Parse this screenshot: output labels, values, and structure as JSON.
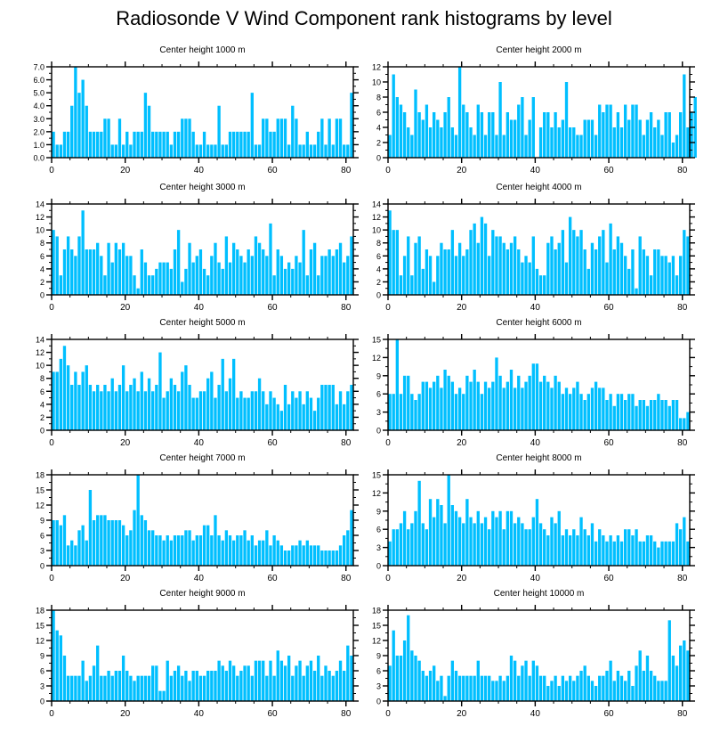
{
  "title": "Radiosonde V Wind Component rank histograms by level",
  "bar_color": "#00bfff",
  "chart_data": [
    {
      "type": "bar",
      "title": "Center height 1000 m",
      "xlabel": "",
      "ylabel": "",
      "xlim": [
        0,
        82
      ],
      "ylim": [
        0,
        7
      ],
      "xticks": [
        0,
        20,
        40,
        60,
        80
      ],
      "xtick_labels": [
        "0",
        "20",
        "40",
        "60",
        "80"
      ],
      "yticks": [
        0,
        1,
        2,
        3,
        4,
        5,
        6,
        7
      ],
      "ytick_labels": [
        "0.0",
        "1.0",
        "2.0",
        "3.0",
        "4.0",
        "5.0",
        "6.0",
        "7.0"
      ],
      "values": [
        2,
        1,
        1,
        2,
        2,
        4,
        7,
        5,
        6,
        4,
        2,
        2,
        2,
        2,
        3,
        3,
        1,
        1,
        3,
        1,
        2,
        1,
        2,
        2,
        2,
        5,
        4,
        2,
        2,
        2,
        2,
        2,
        1,
        2,
        2,
        3,
        3,
        3,
        2,
        1,
        1,
        2,
        1,
        1,
        1,
        4,
        1,
        1,
        2,
        2,
        2,
        2,
        2,
        2,
        5,
        1,
        1,
        3,
        3,
        2,
        2,
        3,
        3,
        3,
        1,
        4,
        3,
        1,
        1,
        2,
        1,
        1,
        2,
        3,
        1,
        3,
        1,
        3,
        3,
        1,
        1,
        5
      ]
    },
    {
      "type": "bar",
      "title": "Center height 2000 m",
      "xlabel": "",
      "ylabel": "",
      "xlim": [
        0,
        82
      ],
      "ylim": [
        0,
        12
      ],
      "xticks": [
        0,
        20,
        40,
        60,
        80
      ],
      "xtick_labels": [
        "0",
        "20",
        "40",
        "60",
        "80"
      ],
      "yticks": [
        0,
        2,
        4,
        6,
        8,
        10,
        12
      ],
      "ytick_labels": [
        "0",
        "2",
        "4",
        "6",
        "8",
        "10",
        "12"
      ],
      "values": [
        3,
        11,
        8,
        7,
        6,
        4,
        3,
        9,
        6,
        5,
        7,
        4,
        6,
        5,
        4,
        6,
        8,
        4,
        3,
        12,
        7,
        6,
        4,
        3,
        7,
        6,
        3,
        6,
        6,
        3,
        10,
        3,
        6,
        5,
        5,
        7,
        8,
        3,
        5,
        8,
        0,
        4,
        6,
        6,
        4,
        6,
        4,
        5,
        10,
        4,
        4,
        3,
        3,
        5,
        5,
        5,
        3,
        7,
        6,
        7,
        7,
        4,
        6,
        4,
        7,
        5,
        7,
        7,
        5,
        3,
        5,
        6,
        4,
        5,
        3,
        6,
        6,
        2,
        3,
        6,
        11,
        4,
        6,
        8
      ]
    },
    {
      "type": "bar",
      "title": "Center height 3000 m",
      "xlabel": "",
      "ylabel": "",
      "xlim": [
        0,
        82
      ],
      "ylim": [
        0,
        14
      ],
      "xticks": [
        0,
        20,
        40,
        60,
        80
      ],
      "xtick_labels": [
        "0",
        "20",
        "40",
        "60",
        "80"
      ],
      "yticks": [
        0,
        2,
        4,
        6,
        8,
        10,
        12,
        14
      ],
      "ytick_labels": [
        "0",
        "2",
        "4",
        "6",
        "8",
        "10",
        "12",
        "14"
      ],
      "values": [
        10,
        9,
        3,
        7,
        9,
        7,
        6,
        9,
        13,
        7,
        7,
        7,
        8,
        6,
        3,
        8,
        5,
        8,
        7,
        8,
        6,
        6,
        3,
        1,
        7,
        5,
        3,
        3,
        4,
        5,
        5,
        5,
        4,
        7,
        10,
        2,
        4,
        8,
        5,
        6,
        7,
        4,
        3,
        6,
        8,
        5,
        4,
        9,
        5,
        8,
        7,
        6,
        5,
        7,
        6,
        9,
        8,
        7,
        6,
        11,
        3,
        7,
        6,
        4,
        5,
        4,
        6,
        5,
        10,
        3,
        7,
        8,
        3,
        6,
        6,
        7,
        6,
        7,
        8,
        5,
        6,
        9
      ]
    },
    {
      "type": "bar",
      "title": "Center height 4000 m",
      "xlabel": "",
      "ylabel": "",
      "xlim": [
        0,
        82
      ],
      "ylim": [
        0,
        14
      ],
      "xticks": [
        0,
        20,
        40,
        60,
        80
      ],
      "xtick_labels": [
        "0",
        "20",
        "40",
        "60",
        "80"
      ],
      "yticks": [
        0,
        2,
        4,
        6,
        8,
        10,
        12,
        14
      ],
      "ytick_labels": [
        "0",
        "2",
        "4",
        "6",
        "8",
        "10",
        "12",
        "14"
      ],
      "values": [
        13,
        10,
        10,
        3,
        6,
        9,
        3,
        8,
        9,
        4,
        7,
        6,
        2,
        6,
        8,
        7,
        7,
        10,
        6,
        8,
        6,
        7,
        10,
        11,
        8,
        12,
        11,
        6,
        10,
        9,
        9,
        8,
        7,
        8,
        9,
        7,
        5,
        6,
        5,
        9,
        4,
        3,
        3,
        8,
        9,
        7,
        8,
        10,
        5,
        12,
        10,
        9,
        10,
        7,
        4,
        8,
        7,
        9,
        10,
        5,
        11,
        7,
        9,
        8,
        6,
        4,
        7,
        1,
        9,
        7,
        6,
        3,
        7,
        7,
        6,
        6,
        5,
        6,
        3,
        6,
        10,
        9
      ]
    },
    {
      "type": "bar",
      "title": "Center height 5000 m",
      "xlabel": "",
      "ylabel": "",
      "xlim": [
        0,
        82
      ],
      "ylim": [
        0,
        14
      ],
      "xticks": [
        0,
        20,
        40,
        60,
        80
      ],
      "xtick_labels": [
        "0",
        "20",
        "40",
        "60",
        "80"
      ],
      "yticks": [
        0,
        2,
        4,
        6,
        8,
        10,
        12,
        14
      ],
      "ytick_labels": [
        "0",
        "2",
        "4",
        "6",
        "8",
        "10",
        "12",
        "14"
      ],
      "values": [
        9,
        9,
        11,
        13,
        10,
        7,
        9,
        7,
        9,
        10,
        7,
        6,
        7,
        6,
        7,
        6,
        8,
        6,
        7,
        10,
        6,
        7,
        8,
        6,
        9,
        6,
        8,
        6,
        7,
        12,
        5,
        6,
        8,
        7,
        6,
        9,
        10,
        7,
        5,
        5,
        6,
        6,
        8,
        9,
        5,
        7,
        11,
        6,
        8,
        11,
        5,
        6,
        5,
        5,
        6,
        6,
        8,
        6,
        4,
        6,
        5,
        4,
        3,
        7,
        4,
        6,
        5,
        6,
        4,
        6,
        5,
        3,
        5,
        7,
        7,
        7,
        7,
        4,
        6,
        4,
        6,
        7
      ]
    },
    {
      "type": "bar",
      "title": "Center height 6000 m",
      "xlabel": "",
      "ylabel": "",
      "xlim": [
        0,
        82
      ],
      "ylim": [
        0,
        15
      ],
      "xticks": [
        0,
        20,
        40,
        60,
        80
      ],
      "xtick_labels": [
        "0",
        "20",
        "40",
        "60",
        "80"
      ],
      "yticks": [
        0,
        3,
        6,
        9,
        12,
        15
      ],
      "ytick_labels": [
        "0",
        "3",
        "6",
        "9",
        "12",
        "15"
      ],
      "values": [
        6,
        6,
        15,
        6,
        9,
        9,
        6,
        5,
        6,
        8,
        8,
        7,
        8,
        9,
        7,
        10,
        9,
        8,
        6,
        7,
        6,
        9,
        8,
        10,
        8,
        6,
        8,
        7,
        8,
        12,
        9,
        7,
        8,
        10,
        7,
        9,
        7,
        8,
        9,
        11,
        11,
        8,
        9,
        8,
        7,
        9,
        8,
        6,
        7,
        6,
        7,
        8,
        6,
        5,
        6,
        7,
        8,
        7,
        7,
        5,
        6,
        4,
        6,
        6,
        5,
        6,
        6,
        4,
        5,
        5,
        4,
        5,
        5,
        6,
        5,
        5,
        4,
        5,
        5,
        2,
        2,
        3
      ]
    },
    {
      "type": "bar",
      "title": "Center height 7000 m",
      "xlabel": "",
      "ylabel": "",
      "xlim": [
        0,
        82
      ],
      "ylim": [
        0,
        18
      ],
      "xticks": [
        0,
        20,
        40,
        60,
        80
      ],
      "xtick_labels": [
        "0",
        "20",
        "40",
        "60",
        "80"
      ],
      "yticks": [
        0,
        3,
        6,
        9,
        12,
        15,
        18
      ],
      "ytick_labels": [
        "0",
        "3",
        "6",
        "9",
        "12",
        "15",
        "18"
      ],
      "values": [
        9,
        9,
        8,
        10,
        4,
        5,
        4,
        7,
        8,
        5,
        15,
        9,
        10,
        10,
        10,
        9,
        9,
        9,
        9,
        8,
        6,
        7,
        11,
        18,
        10,
        9,
        7,
        7,
        6,
        6,
        5,
        6,
        5,
        6,
        6,
        6,
        7,
        7,
        5,
        6,
        6,
        8,
        8,
        6,
        10,
        6,
        5,
        7,
        6,
        5,
        6,
        6,
        7,
        5,
        6,
        4,
        5,
        5,
        7,
        4,
        6,
        5,
        4,
        3,
        3,
        4,
        4,
        5,
        4,
        5,
        4,
        4,
        4,
        3,
        3,
        3,
        3,
        3,
        4,
        6,
        7,
        11
      ]
    },
    {
      "type": "bar",
      "title": "Center height 8000 m",
      "xlabel": "",
      "ylabel": "",
      "xlim": [
        0,
        82
      ],
      "ylim": [
        0,
        15
      ],
      "xticks": [
        0,
        20,
        40,
        60,
        80
      ],
      "xtick_labels": [
        "0",
        "20",
        "40",
        "60",
        "80"
      ],
      "yticks": [
        0,
        3,
        6,
        9,
        12,
        15
      ],
      "ytick_labels": [
        "0",
        "3",
        "6",
        "9",
        "12",
        "15"
      ],
      "values": [
        4,
        6,
        6,
        7,
        9,
        6,
        7,
        9,
        14,
        7,
        6,
        11,
        8,
        11,
        10,
        7,
        15,
        10,
        9,
        8,
        7,
        11,
        8,
        7,
        9,
        7,
        8,
        6,
        9,
        8,
        9,
        6,
        9,
        9,
        7,
        8,
        7,
        6,
        6,
        8,
        11,
        7,
        6,
        5,
        8,
        7,
        9,
        5,
        6,
        5,
        6,
        5,
        8,
        6,
        5,
        7,
        4,
        6,
        5,
        4,
        5,
        4,
        5,
        4,
        6,
        6,
        5,
        6,
        4,
        4,
        5,
        5,
        4,
        3,
        4,
        4,
        4,
        4,
        7,
        6,
        8,
        4
      ]
    },
    {
      "type": "bar",
      "title": "Center height 9000 m",
      "xlabel": "",
      "ylabel": "",
      "xlim": [
        0,
        82
      ],
      "ylim": [
        0,
        18
      ],
      "xticks": [
        0,
        20,
        40,
        60,
        80
      ],
      "xtick_labels": [
        "0",
        "20",
        "40",
        "60",
        "80"
      ],
      "yticks": [
        0,
        3,
        6,
        9,
        12,
        15,
        18
      ],
      "ytick_labels": [
        "0",
        "3",
        "6",
        "9",
        "12",
        "15",
        "18"
      ],
      "values": [
        18,
        14,
        13,
        9,
        5,
        5,
        5,
        5,
        8,
        4,
        5,
        7,
        11,
        5,
        5,
        6,
        5,
        6,
        6,
        9,
        6,
        5,
        4,
        5,
        5,
        5,
        5,
        7,
        7,
        2,
        2,
        8,
        5,
        6,
        7,
        5,
        6,
        4,
        6,
        6,
        5,
        5,
        6,
        6,
        6,
        8,
        7,
        6,
        8,
        7,
        5,
        6,
        7,
        7,
        5,
        8,
        8,
        8,
        5,
        8,
        5,
        10,
        8,
        7,
        9,
        5,
        7,
        8,
        5,
        7,
        8,
        6,
        9,
        5,
        7,
        6,
        5,
        6,
        8,
        6,
        11,
        9
      ]
    },
    {
      "type": "bar",
      "title": "Center height 10000 m",
      "xlabel": "",
      "ylabel": "",
      "xlim": [
        0,
        82
      ],
      "ylim": [
        0,
        18
      ],
      "xticks": [
        0,
        20,
        40,
        60,
        80
      ],
      "xtick_labels": [
        "0",
        "20",
        "40",
        "60",
        "80"
      ],
      "yticks": [
        0,
        3,
        6,
        9,
        12,
        15,
        18
      ],
      "ytick_labels": [
        "0",
        "3",
        "6",
        "9",
        "12",
        "15",
        "18"
      ],
      "values": [
        7,
        14,
        9,
        9,
        12,
        17,
        10,
        9,
        8,
        6,
        5,
        6,
        7,
        4,
        5,
        1,
        5,
        8,
        6,
        5,
        5,
        5,
        5,
        5,
        8,
        5,
        5,
        5,
        4,
        4,
        5,
        4,
        5,
        9,
        8,
        5,
        7,
        8,
        5,
        8,
        7,
        5,
        5,
        3,
        4,
        5,
        3,
        5,
        4,
        5,
        4,
        5,
        6,
        7,
        5,
        4,
        3,
        5,
        5,
        6,
        8,
        4,
        6,
        5,
        4,
        6,
        3,
        7,
        10,
        6,
        9,
        6,
        5,
        4,
        4,
        4,
        16,
        9,
        7,
        11,
        12,
        10
      ]
    }
  ]
}
